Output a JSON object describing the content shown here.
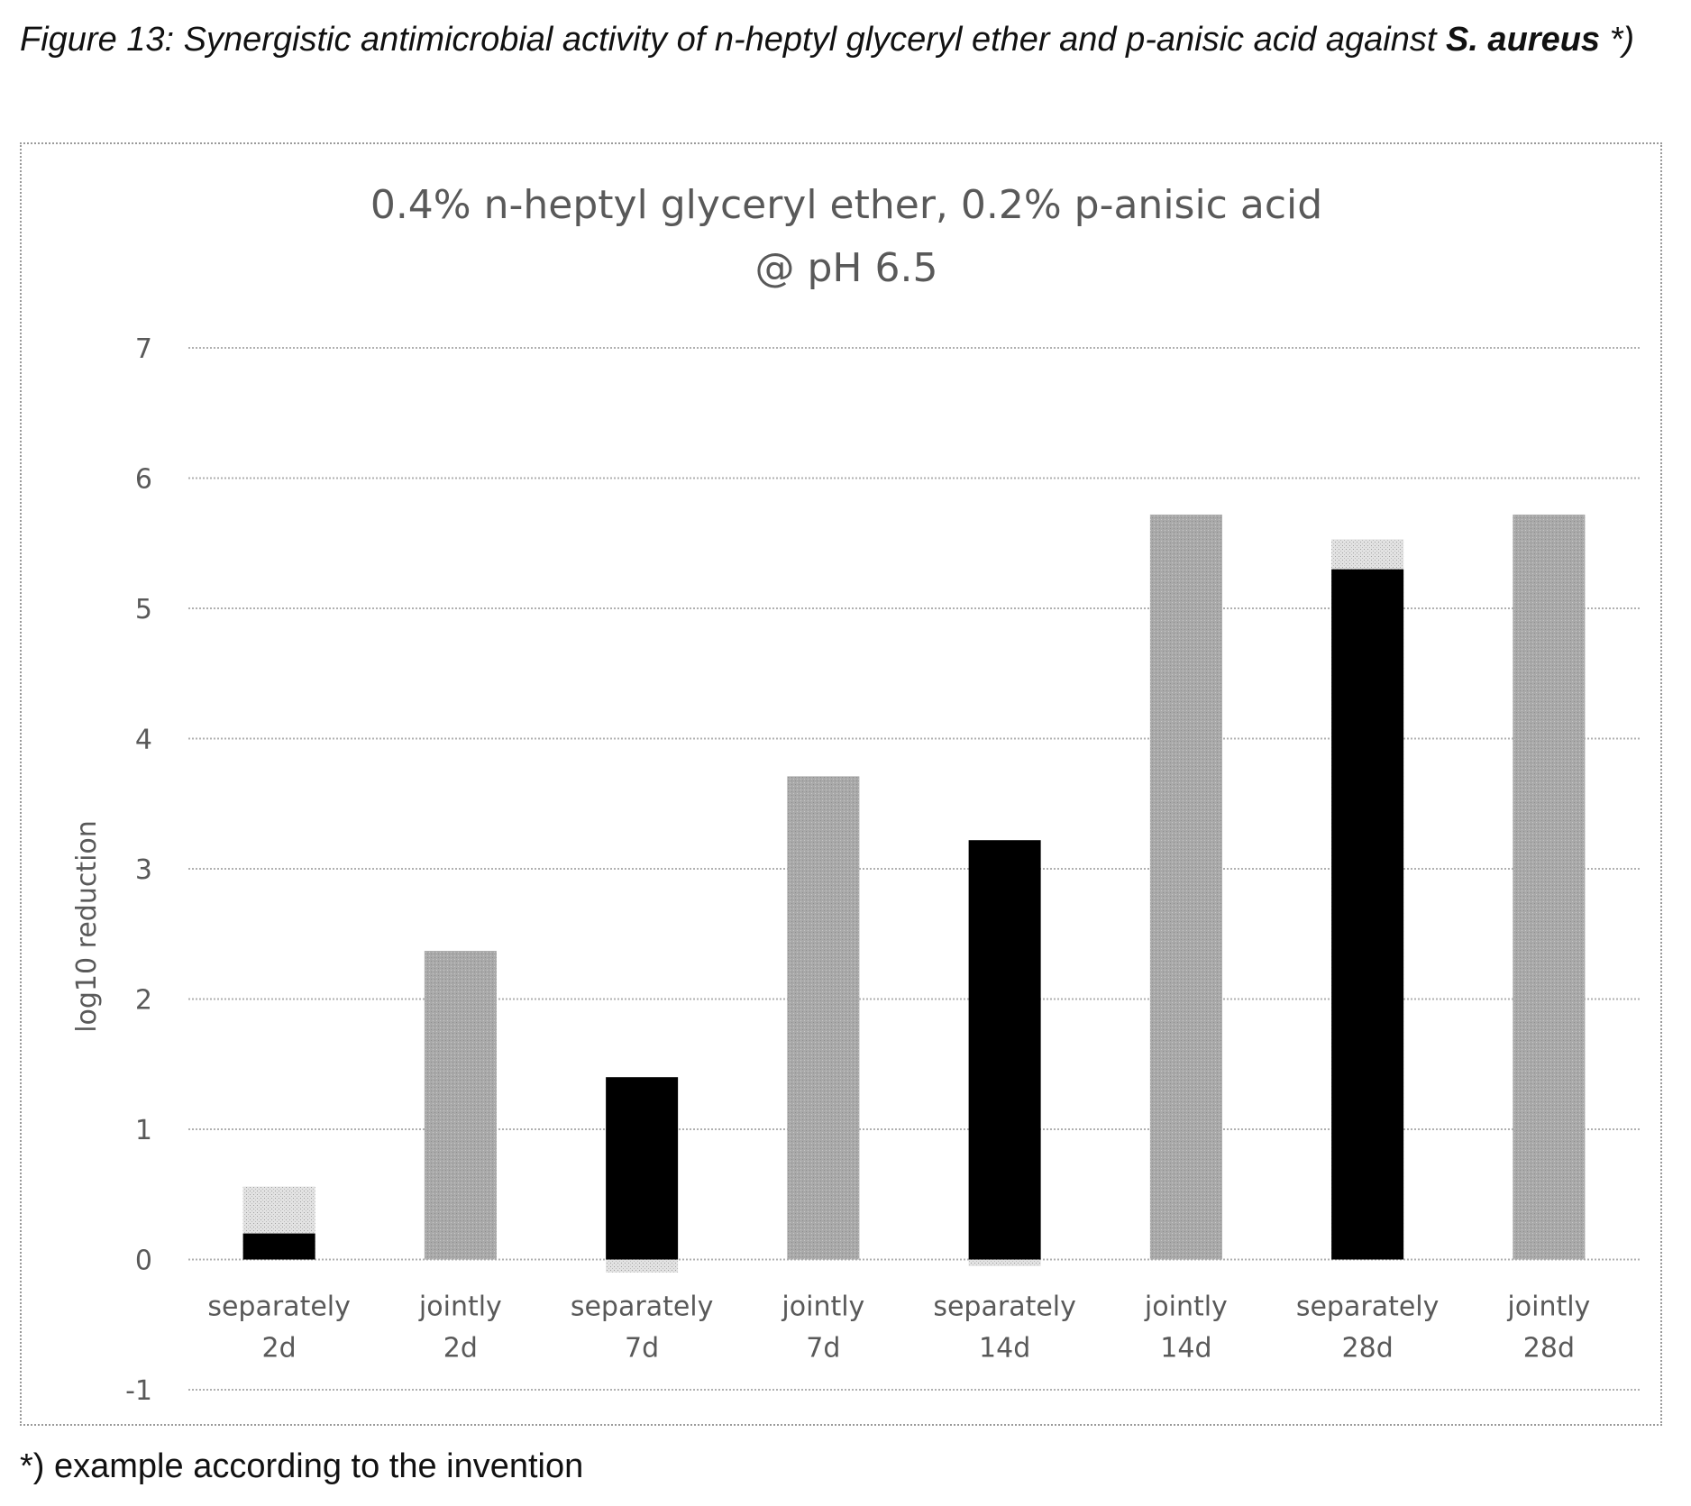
{
  "figure": {
    "caption_prefix": "Figure 13: Synergistic antimicrobial activity of n-heptyl glyceryl ether and p-anisic acid against ",
    "caption_organism": "S. aureus",
    "caption_suffix": " *)",
    "footnote": "*) example according to the invention"
  },
  "colors": {
    "separately_measured": "#000000",
    "separately_expected": "#d2d2d2",
    "jointly": "#a9a9a9",
    "grid": "#b0b0b0",
    "text": "#595959"
  },
  "chart_data": {
    "type": "bar",
    "title_lines": [
      "0.4% n-heptyl glyceryl ether, 0.2% p-anisic acid",
      "@ pH 6.5"
    ],
    "xlabel": "",
    "ylabel": "log10 reduction",
    "ylim": [
      -1,
      7
    ],
    "yticks": [
      "-1",
      "0",
      "1",
      "2",
      "3",
      "4",
      "5",
      "6",
      "7"
    ],
    "grid": true,
    "categories": [
      [
        "separately",
        "2d"
      ],
      [
        "jointly",
        "2d"
      ],
      [
        "separately",
        "7d"
      ],
      [
        "jointly",
        "7d"
      ],
      [
        "separately",
        "14d"
      ],
      [
        "jointly",
        "14d"
      ],
      [
        "separately",
        "28d"
      ],
      [
        "jointly",
        "28d"
      ]
    ],
    "series": [
      {
        "kind": "expected",
        "values": [
          0.56,
          null,
          -0.1,
          null,
          -0.05,
          null,
          5.53,
          null
        ]
      },
      {
        "kind": "measured",
        "values": [
          0.2,
          2.37,
          1.4,
          3.71,
          3.22,
          5.72,
          5.3,
          5.72
        ]
      }
    ]
  }
}
